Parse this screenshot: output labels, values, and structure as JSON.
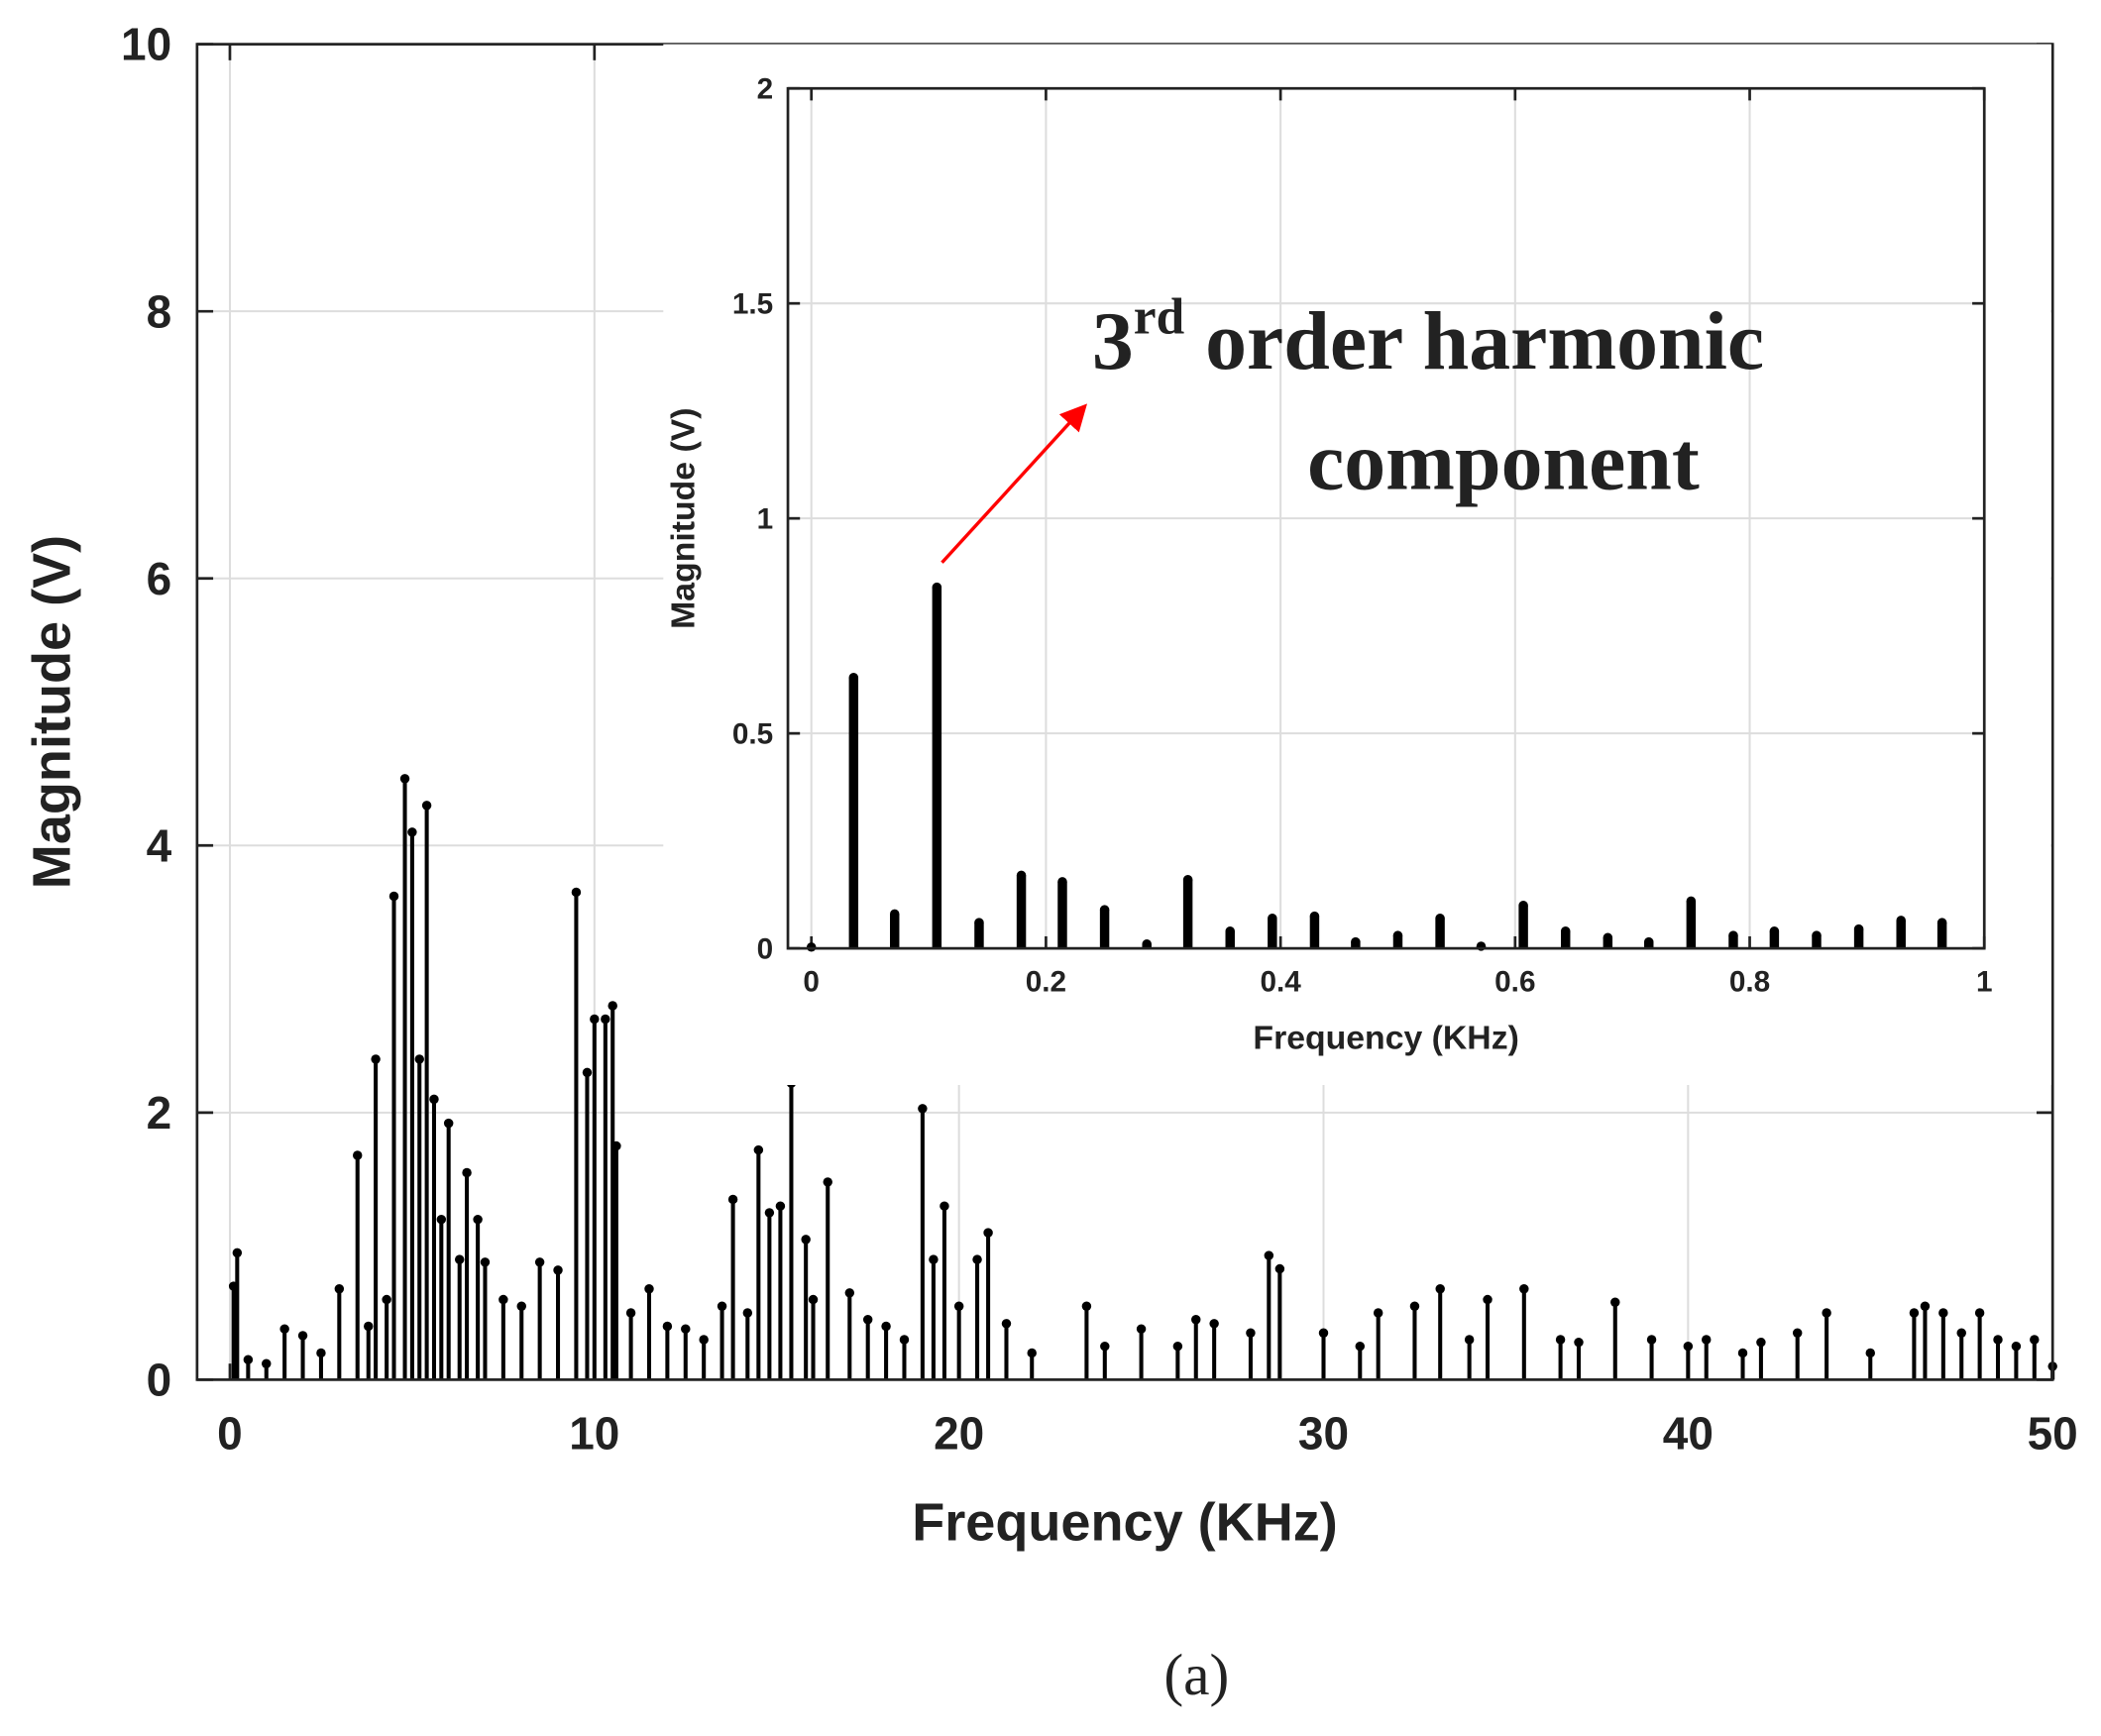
{
  "chart_data": [
    {
      "type": "stem",
      "xlabel": "Frequency (KHz)",
      "ylabel": "Magnitude (V)",
      "color": "#000000",
      "grid": true,
      "xlim": [
        -0.9,
        50
      ],
      "ylim": [
        0,
        10
      ],
      "xticks": [
        0,
        10,
        20,
        30,
        40,
        50
      ],
      "yticks": [
        0,
        2,
        4,
        6,
        8,
        10
      ],
      "x": [
        0.1,
        0.2,
        0.5,
        1.0,
        1.5,
        2.0,
        2.5,
        3.0,
        3.5,
        3.8,
        4.0,
        4.3,
        4.5,
        4.8,
        5.0,
        5.2,
        5.4,
        5.6,
        5.8,
        6.0,
        6.3,
        6.5,
        6.8,
        7.0,
        7.5,
        8.0,
        8.5,
        9.0,
        9.5,
        9.8,
        10.0,
        10.3,
        10.5,
        10.6,
        11.0,
        11.5,
        12.0,
        12.5,
        13.0,
        13.5,
        13.8,
        14.2,
        14.5,
        14.8,
        15.1,
        15.4,
        15.8,
        16.0,
        16.4,
        17.0,
        17.5,
        18.0,
        18.5,
        19.0,
        19.3,
        19.6,
        20.0,
        20.5,
        20.8,
        21.3,
        22.0,
        23.5,
        24.0,
        25.0,
        26.0,
        26.5,
        27.0,
        28.0,
        28.5,
        28.8,
        30.0,
        31.0,
        31.5,
        32.5,
        33.2,
        34.0,
        34.5,
        35.5,
        36.5,
        37.0,
        38.0,
        39.0,
        40.0,
        40.5,
        41.5,
        42.0,
        43.0,
        43.8,
        45.0,
        46.2,
        46.5,
        47.0,
        47.5,
        48.0,
        48.5,
        49.0,
        49.5,
        50.0
      ],
      "values": [
        0.7,
        0.95,
        0.15,
        0.12,
        0.38,
        0.33,
        0.2,
        0.68,
        1.68,
        0.4,
        2.4,
        0.6,
        3.62,
        4.5,
        4.1,
        2.4,
        4.3,
        2.1,
        1.2,
        1.92,
        0.9,
        1.55,
        1.2,
        0.88,
        0.6,
        0.55,
        0.88,
        0.82,
        3.65,
        2.3,
        2.7,
        2.7,
        2.8,
        1.75,
        0.5,
        0.68,
        0.4,
        0.38,
        0.3,
        0.55,
        1.35,
        0.5,
        1.72,
        1.25,
        1.3,
        2.22,
        1.05,
        0.6,
        1.48,
        0.65,
        0.45,
        0.4,
        0.3,
        2.03,
        0.9,
        1.3,
        0.55,
        0.9,
        1.1,
        0.42,
        0.2,
        0.55,
        0.25,
        0.38,
        0.25,
        0.45,
        0.42,
        0.35,
        0.93,
        0.83,
        0.35,
        0.25,
        0.5,
        0.55,
        0.68,
        0.3,
        0.6,
        0.68,
        0.3,
        0.28,
        0.58,
        0.3,
        0.25,
        0.3,
        0.2,
        0.28,
        0.35,
        0.5,
        0.2,
        0.5,
        0.55,
        0.5,
        0.35,
        0.5,
        0.3,
        0.25,
        0.3,
        0.1
      ]
    },
    {
      "type": "stem",
      "xlabel": "Frequency (KHz)",
      "ylabel": "Magnitude (V)",
      "color": "#000000",
      "grid": true,
      "xlim": [
        -0.02,
        1
      ],
      "ylim": [
        0,
        2
      ],
      "xticks": [
        0,
        0.2,
        0.4,
        0.6,
        0.8,
        1
      ],
      "yticks": [
        0,
        0.5,
        1,
        1.5,
        2
      ],
      "x": [
        0,
        0.036,
        0.071,
        0.107,
        0.143,
        0.179,
        0.214,
        0.25,
        0.286,
        0.321,
        0.357,
        0.393,
        0.429,
        0.464,
        0.5,
        0.536,
        0.571,
        0.607,
        0.643,
        0.679,
        0.714,
        0.75,
        0.786,
        0.821,
        0.857,
        0.893,
        0.929,
        0.964
      ],
      "values": [
        0.003,
        0.63,
        0.08,
        0.84,
        0.06,
        0.17,
        0.155,
        0.09,
        0.01,
        0.16,
        0.04,
        0.07,
        0.075,
        0.015,
        0.03,
        0.07,
        0.005,
        0.1,
        0.04,
        0.025,
        0.015,
        0.11,
        0.03,
        0.04,
        0.03,
        0.045,
        0.065,
        0.06
      ],
      "annotation": [
        "3",
        "rd",
        " order harmonic",
        "component"
      ],
      "annotation_color": "#ff0000"
    }
  ],
  "caption": "(a)"
}
